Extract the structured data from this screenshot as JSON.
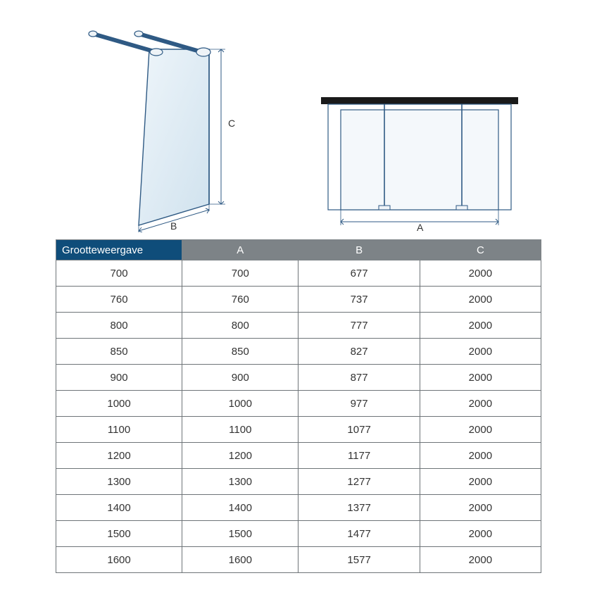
{
  "colors": {
    "header_bg": "#7d8387",
    "header_first_bg": "#0f4d7a",
    "header_text": "#ffffff",
    "cell_border": "#6e7478",
    "cell_text": "#333333",
    "panel_fill": "#e7eff5",
    "panel_glass": "#dbe8f1",
    "stroke": "#2f5a84"
  },
  "diagram_labels": {
    "A": "A",
    "B": "B",
    "C": "C"
  },
  "table": {
    "columns": [
      "Grootteweergave",
      "A",
      "B",
      "C"
    ],
    "col_widths_pct": [
      26,
      24,
      25,
      25
    ],
    "rows": [
      [
        700,
        700,
        677,
        2000
      ],
      [
        760,
        760,
        737,
        2000
      ],
      [
        800,
        800,
        777,
        2000
      ],
      [
        850,
        850,
        827,
        2000
      ],
      [
        900,
        900,
        877,
        2000
      ],
      [
        1000,
        1000,
        977,
        2000
      ],
      [
        1100,
        1100,
        1077,
        2000
      ],
      [
        1200,
        1200,
        1177,
        2000
      ],
      [
        1300,
        1300,
        1277,
        2000
      ],
      [
        1400,
        1400,
        1377,
        2000
      ],
      [
        1500,
        1500,
        1477,
        2000
      ],
      [
        1600,
        1600,
        1577,
        2000
      ]
    ]
  }
}
